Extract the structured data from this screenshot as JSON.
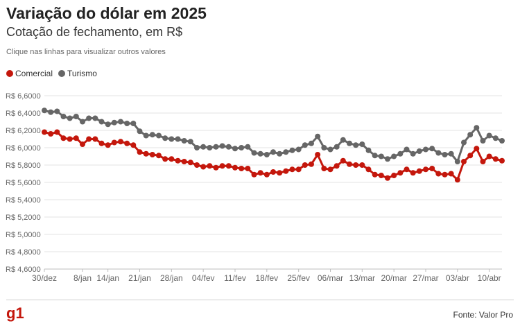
{
  "header": {
    "title": "Variação do dólar em 2025",
    "subtitle": "Cotação de fechamento, em R$",
    "hint": "Clique nas linhas para visualizar outros valores"
  },
  "footer": {
    "logo": "g1",
    "source": "Fonte: Valor Pro"
  },
  "colors": {
    "comercial": "#c4170c",
    "turismo": "#666666",
    "grid": "#e3e3e3",
    "axis_text": "#666666"
  },
  "chart_data": {
    "type": "line",
    "ylim": [
      4.6,
      6.6
    ],
    "ytick_values": [
      4.6,
      4.8,
      5.0,
      5.2,
      5.4,
      5.6,
      5.8,
      6.0,
      6.2,
      6.4,
      6.6
    ],
    "ytick_labels": [
      "R$ 4,6000",
      "R$ 4,8000",
      "R$ 5,0000",
      "R$ 5,2000",
      "R$ 5,4000",
      "R$ 5,6000",
      "R$ 5,8000",
      "R$ 6,0000",
      "R$ 6,2000",
      "R$ 6,4000",
      "R$ 6,6000"
    ],
    "xtick_labels": [
      "30/dez",
      "8/jan",
      "14/jan",
      "21/jan",
      "28/jan",
      "04/fev",
      "11/fev",
      "18/fev",
      "25/fev",
      "06/mar",
      "13/mar",
      "20/mar",
      "27/mar",
      "03/abr",
      "10/abr"
    ],
    "xtick_index": [
      0,
      6,
      10,
      15,
      20,
      25,
      30,
      35,
      40,
      45,
      50,
      55,
      60,
      65,
      70
    ],
    "grid": true,
    "legend_position": "top-left",
    "series": [
      {
        "name": "Comercial",
        "color_key": "comercial",
        "values": [
          6.18,
          6.16,
          6.18,
          6.11,
          6.1,
          6.11,
          6.04,
          6.1,
          6.1,
          6.05,
          6.03,
          6.06,
          6.07,
          6.05,
          6.03,
          5.95,
          5.93,
          5.92,
          5.91,
          5.87,
          5.87,
          5.85,
          5.84,
          5.83,
          5.8,
          5.78,
          5.79,
          5.77,
          5.79,
          5.79,
          5.77,
          5.76,
          5.76,
          5.69,
          5.71,
          5.69,
          5.72,
          5.71,
          5.73,
          5.75,
          5.75,
          5.8,
          5.81,
          5.92,
          5.76,
          5.75,
          5.79,
          5.85,
          5.81,
          5.8,
          5.8,
          5.75,
          5.69,
          5.68,
          5.65,
          5.68,
          5.71,
          5.75,
          5.71,
          5.73,
          5.75,
          5.76,
          5.7,
          5.69,
          5.7,
          5.63,
          5.84,
          5.91,
          5.99,
          5.84,
          5.9,
          5.87,
          5.85
        ]
      },
      {
        "name": "Turismo",
        "color_key": "turismo",
        "values": [
          6.43,
          6.41,
          6.42,
          6.36,
          6.34,
          6.36,
          6.3,
          6.34,
          6.34,
          6.3,
          6.27,
          6.29,
          6.3,
          6.28,
          6.28,
          6.19,
          6.14,
          6.15,
          6.14,
          6.11,
          6.1,
          6.1,
          6.08,
          6.07,
          6.0,
          6.01,
          6.0,
          6.01,
          6.02,
          6.01,
          5.99,
          6.0,
          6.01,
          5.94,
          5.93,
          5.92,
          5.95,
          5.93,
          5.95,
          5.97,
          5.98,
          6.03,
          6.05,
          6.13,
          6.0,
          5.98,
          6.01,
          6.09,
          6.05,
          6.03,
          6.04,
          5.97,
          5.91,
          5.9,
          5.87,
          5.9,
          5.93,
          5.98,
          5.93,
          5.96,
          5.98,
          5.99,
          5.94,
          5.92,
          5.93,
          5.84,
          6.06,
          6.15,
          6.23,
          6.08,
          6.14,
          6.11,
          6.08
        ]
      }
    ]
  }
}
